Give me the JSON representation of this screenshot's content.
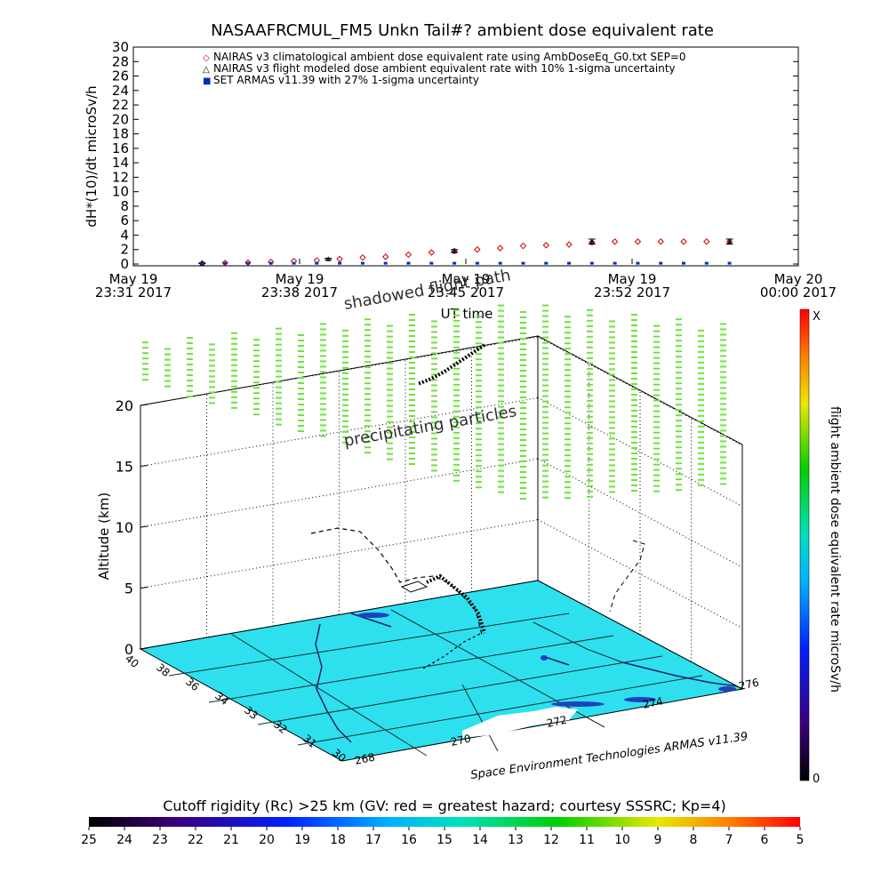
{
  "title": "NASAAFRCMUL_FM5 Unkn Tail#? ambient dose equivalent rate",
  "top_chart": {
    "ylabel": "dH*(10)/dt microSv/h",
    "xlabel": "UT time",
    "legend": [
      {
        "marker": "◇",
        "label": "NAIRAS v3 climatological ambient dose equivalent rate using AmbDoseEq_G0.txt SEP=0",
        "color": "#d00000"
      },
      {
        "marker": "△",
        "label": "NAIRAS v3 flight modeled dose ambient equivalent rate with 10% 1-sigma uncertainty",
        "color": "#000000"
      },
      {
        "marker": "■",
        "label": "SET ARMAS v11.39 with 27% 1-sigma uncertainty",
        "color": "#0030c0"
      }
    ],
    "x_tick_labels": [
      {
        "date": "May 19",
        "time": "23:31 2017"
      },
      {
        "date": "May 19",
        "time": "23:38 2017"
      },
      {
        "date": "May 19",
        "time": "23:45 2017"
      },
      {
        "date": "May 19",
        "time": "23:52 2017"
      },
      {
        "date": "May 20",
        "time": "00:00 2017"
      }
    ]
  },
  "chart_data": {
    "type": "scatter",
    "title": "NASAAFRCMUL_FM5 Unkn Tail#? ambient dose equivalent rate",
    "xlabel": "UT time",
    "ylabel": "dH*(10)/dt microSv/h",
    "x_unit": "minutes after May 19 23:31 2017",
    "xlim": [
      0,
      29
    ],
    "ylim": [
      0,
      30
    ],
    "yticks": [
      0,
      2,
      4,
      6,
      8,
      10,
      12,
      14,
      16,
      18,
      20,
      22,
      24,
      26,
      28,
      30
    ],
    "series": [
      {
        "name": "NAIRAS v3 climatological ambient dose equivalent rate using AmbDoseEq_G0.txt SEP=0",
        "marker": "diamond",
        "color": "#d00000",
        "x": [
          3,
          4,
          5,
          6,
          7,
          8,
          9,
          10,
          11,
          12,
          13,
          14,
          15,
          16,
          17,
          18,
          19,
          20,
          21,
          22,
          23,
          24,
          25,
          26
        ],
        "y": [
          0.1,
          0.15,
          0.2,
          0.3,
          0.4,
          0.5,
          0.7,
          0.9,
          1.0,
          1.3,
          1.6,
          1.8,
          2.0,
          2.2,
          2.5,
          2.6,
          2.7,
          3.0,
          3.1,
          3.1,
          3.1,
          3.1,
          3.1,
          3.1
        ]
      },
      {
        "name": "NAIRAS v3 flight modeled dose ambient equivalent rate with 10% 1-sigma uncertainty",
        "marker": "triangle",
        "color": "#000000",
        "x": [
          3,
          8.5,
          14,
          20,
          26
        ],
        "y": [
          0.1,
          0.7,
          1.8,
          3.1,
          3.1
        ],
        "err": [
          0.05,
          0.1,
          0.2,
          0.35,
          0.35
        ]
      },
      {
        "name": "SET ARMAS v11.39 with 27% 1-sigma uncertainty",
        "marker": "square",
        "color": "#0030c0",
        "x": [
          3,
          4,
          5,
          6,
          7,
          8,
          9,
          10,
          11,
          12,
          13,
          14,
          15,
          16,
          17,
          18,
          19,
          20,
          21,
          22,
          23,
          24,
          25,
          26
        ],
        "y": [
          0.05,
          0.05,
          0.05,
          0.05,
          0.05,
          0.05,
          0.05,
          0.05,
          0.05,
          0.05,
          0.05,
          0.05,
          0.05,
          0.05,
          0.05,
          0.05,
          0.05,
          0.05,
          0.05,
          0.05,
          0.05,
          0.05,
          0.05,
          0.05
        ]
      }
    ]
  },
  "scene": {
    "altitude_label": "Altitude (km)",
    "altitude_ticks": [
      "0",
      "5",
      "10",
      "15",
      "20"
    ],
    "lat_ticks": [
      "38",
      "36",
      "34",
      "33",
      "32",
      "31",
      "30"
    ],
    "lon_ticks": [
      "268",
      "270",
      "272",
      "274",
      "276"
    ],
    "lat_first_tick": "40",
    "shadow_label": "shadowed flight path",
    "precip_label": "precipitating particles",
    "credit": "Space Environment Technologies ARMAS v11.39"
  },
  "right_colorbar": {
    "label": "flight ambient dose equivalent rate microSv/h",
    "top_label": "X",
    "bottom_label": "0"
  },
  "bottom_colorbar": {
    "title": "Cutoff rigidity (Rc) >25 km (GV: red = greatest hazard; courtesy SSSRC; Kp=4)",
    "ticks": [
      "25",
      "24",
      "23",
      "22",
      "21",
      "20",
      "19",
      "18",
      "17",
      "16",
      "15",
      "14",
      "13",
      "12",
      "11",
      "10",
      "9",
      "8",
      "7",
      "6",
      "5"
    ]
  },
  "colors": {
    "ground": "#2ee0ee",
    "precip_marks": "#70e040",
    "nairas_red": "#d00000",
    "armas_blue": "#0030c0"
  }
}
